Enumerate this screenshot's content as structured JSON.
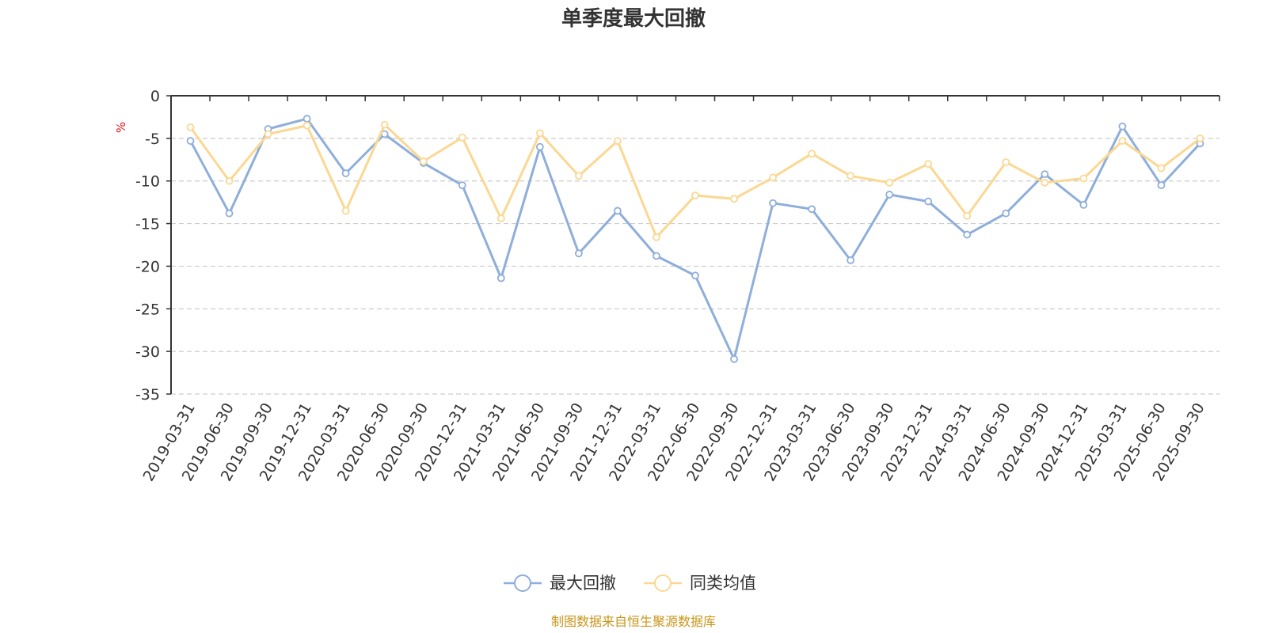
{
  "chart_data": {
    "type": "line",
    "title": "单季度最大回撤",
    "ylabel": "%",
    "ylim": [
      -35,
      0
    ],
    "yticks": [
      0,
      -5,
      -10,
      -15,
      -20,
      -25,
      -30,
      -35
    ],
    "ytick_labels": [
      "0",
      "-5",
      "-10",
      "-15",
      "-20",
      "-25",
      "-30",
      "-35"
    ],
    "grid": true,
    "legend_position": "bottom",
    "categories": [
      "2019-03-31",
      "2019-06-30",
      "2019-09-30",
      "2019-12-31",
      "2020-03-31",
      "2020-06-30",
      "2020-09-30",
      "2020-12-31",
      "2021-03-31",
      "2021-06-30",
      "2021-09-30",
      "2021-12-31",
      "2022-03-31",
      "2022-06-30",
      "2022-09-30",
      "2022-12-31",
      "2023-03-31",
      "2023-06-30",
      "2023-09-30",
      "2023-12-31",
      "2024-03-31",
      "2024-06-30",
      "2024-09-30",
      "2024-12-31",
      "2025-03-31",
      "2025-06-30",
      "2025-09-30"
    ],
    "series": [
      {
        "name": "最大回撤",
        "color": "#8eaedb",
        "values": [
          -5.3,
          -13.8,
          -3.9,
          -2.7,
          -9.1,
          -4.5,
          -7.9,
          -10.5,
          -21.4,
          -6.0,
          -18.5,
          -13.5,
          -18.8,
          -21.1,
          -30.9,
          -12.6,
          -13.3,
          -19.3,
          -11.6,
          -12.4,
          -16.3,
          -13.8,
          -9.2,
          -12.8,
          -3.6,
          -10.5,
          -5.6
        ]
      },
      {
        "name": "同类均值",
        "color": "#fbd892",
        "values": [
          -3.7,
          -10.0,
          -4.5,
          -3.5,
          -13.5,
          -3.4,
          -7.7,
          -4.9,
          -14.4,
          -4.4,
          -9.4,
          -5.3,
          -16.6,
          -11.7,
          -12.1,
          -9.6,
          -6.8,
          -9.4,
          -10.2,
          -8.0,
          -14.1,
          -7.8,
          -10.2,
          -9.7,
          -5.3,
          -8.5,
          -5.0
        ]
      }
    ]
  },
  "footer": {
    "source_text": "制图数据来自恒生聚源数据库"
  }
}
